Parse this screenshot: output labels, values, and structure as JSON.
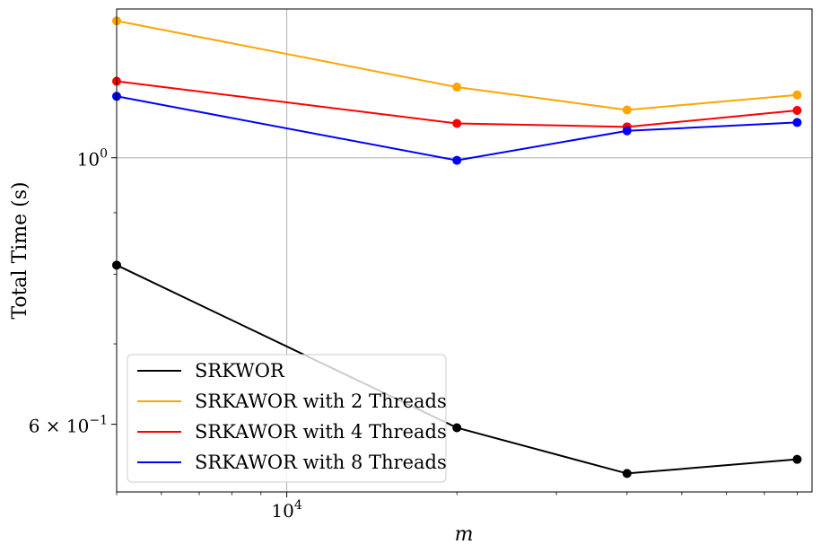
{
  "chart_data": {
    "type": "line",
    "xlabel": "m",
    "ylabel": "Total Time (s)",
    "x_scale": "log",
    "y_scale": "log",
    "xlim": [
      5000,
      85000
    ],
    "ylim": [
      0.527,
      1.33
    ],
    "grid": true,
    "legend_position": "lower-left",
    "x_ticks": [
      {
        "value": 10000,
        "base": "10",
        "exp": "4"
      }
    ],
    "y_ticks": [
      {
        "value": 1.0,
        "mant": "",
        "base": "10",
        "exp": "0"
      },
      {
        "value": 0.6,
        "mant": "6 × ",
        "base": "10",
        "exp": "−1"
      }
    ],
    "x": [
      5000,
      20000,
      40000,
      80000
    ],
    "series": [
      {
        "name": "SRKWOR",
        "color": "#000000",
        "values": [
          0.814,
          0.596,
          0.546,
          0.561
        ]
      },
      {
        "name": "SRKAWOR with 2 Threads",
        "color": "#FFA500",
        "values": [
          1.3,
          1.145,
          1.096,
          1.128
        ]
      },
      {
        "name": "SRKAWOR with 4 Threads",
        "color": "#FF0000",
        "values": [
          1.158,
          1.068,
          1.061,
          1.095
        ]
      },
      {
        "name": "SRKAWOR with 8 Threads",
        "color": "#0000FF",
        "values": [
          1.125,
          0.995,
          1.053,
          1.07
        ]
      }
    ]
  }
}
